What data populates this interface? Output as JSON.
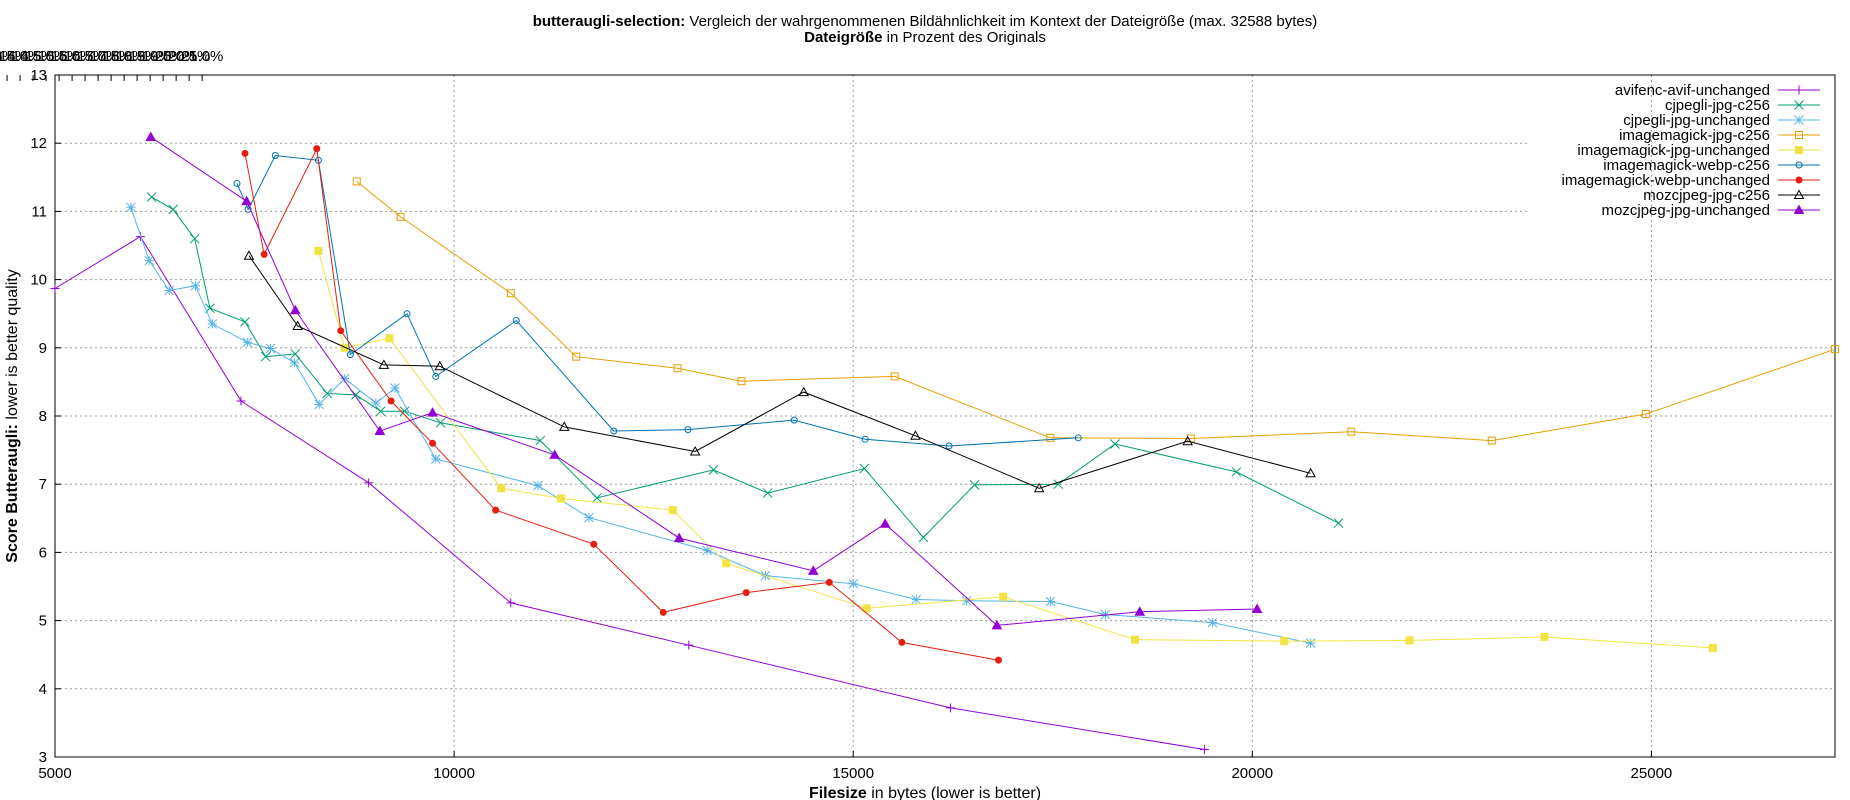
{
  "chart_data": {
    "type": "line",
    "title_bold": "butteraugli-selection:",
    "title_rest": " Vergleich der wahrgenommenen Bildähnlichkeit im Kontext der Dateigröße (max. 32588 bytes)",
    "x2label_bold": "Dateigröße",
    "x2label_rest": " in Prozent des Originals",
    "xlabel_bold": "Filesize",
    "xlabel_rest": " in bytes (lower is better)",
    "ylabel_bold": "Score Butteraugli:",
    "ylabel_rest": " lower is better quality",
    "xlim": [
      5000,
      27300
    ],
    "ylim": [
      3,
      13
    ],
    "x_ticks": [
      5000,
      10000,
      15000,
      20000,
      25000
    ],
    "y_ticks": [
      3,
      4,
      5,
      6,
      7,
      8,
      9,
      10,
      11,
      12,
      13
    ],
    "x2_ticks": [
      "4.0%",
      "4.5%",
      "5.0%",
      "5.5%",
      "6.0%",
      "6.5%",
      "7.0%",
      "7.5%",
      "8.0%",
      "8.5%",
      "9.0%",
      "9.5%",
      "10.0%",
      "10.5%",
      "11.0%",
      "11.5%",
      "12.0%",
      "12.5%",
      "13.0%",
      "13.5%",
      "14.0%",
      "14.5%",
      "15.0%",
      "15.5%",
      "16.0%",
      "16.5%",
      "17.0%",
      "17.5%",
      "18.0%",
      "18.5%",
      "19.0%",
      "19.5%",
      "20.0%",
      "20.5%",
      "21.0%"
    ],
    "x2_max_bytes": 32588,
    "grid": true,
    "legend_position": "top-right",
    "series": [
      {
        "name": "avifenc-avif-unchanged",
        "color": "#9400d3",
        "marker": "plus",
        "points": [
          [
            5000,
            9.87
          ],
          [
            6070,
            10.63
          ],
          [
            7330,
            8.22
          ],
          [
            8930,
            7.02
          ],
          [
            10710,
            5.26
          ],
          [
            12940,
            4.64
          ],
          [
            16220,
            3.72
          ],
          [
            19400,
            3.11
          ]
        ]
      },
      {
        "name": "cjpegli-jpg-c256",
        "color": "#009e73",
        "marker": "cross",
        "points": [
          [
            6210,
            11.21
          ],
          [
            6480,
            11.03
          ],
          [
            6750,
            10.6
          ],
          [
            6940,
            9.58
          ],
          [
            7380,
            9.38
          ],
          [
            7640,
            8.87
          ],
          [
            8010,
            8.91
          ],
          [
            8410,
            8.33
          ],
          [
            8770,
            8.31
          ],
          [
            9080,
            8.07
          ],
          [
            9380,
            8.07
          ],
          [
            9830,
            7.9
          ],
          [
            11080,
            7.64
          ],
          [
            11790,
            6.8
          ],
          [
            13250,
            7.21
          ],
          [
            13930,
            6.87
          ],
          [
            15140,
            7.23
          ],
          [
            15880,
            6.22
          ],
          [
            16520,
            6.99
          ],
          [
            17570,
            7.0
          ],
          [
            18280,
            7.59
          ],
          [
            19800,
            7.18
          ],
          [
            21080,
            6.43
          ]
        ]
      },
      {
        "name": "cjpegli-jpg-unchanged",
        "color": "#56b4e9",
        "marker": "star",
        "points": [
          [
            5950,
            11.06
          ],
          [
            6180,
            10.28
          ],
          [
            6430,
            9.84
          ],
          [
            6760,
            9.91
          ],
          [
            6970,
            9.35
          ],
          [
            7410,
            9.08
          ],
          [
            7700,
            8.99
          ],
          [
            8000,
            8.78
          ],
          [
            8310,
            8.17
          ],
          [
            8630,
            8.55
          ],
          [
            9020,
            8.19
          ],
          [
            9260,
            8.41
          ],
          [
            9770,
            7.37
          ],
          [
            11050,
            6.98
          ],
          [
            11690,
            6.51
          ],
          [
            13170,
            6.03
          ],
          [
            13900,
            5.66
          ],
          [
            15000,
            5.54
          ],
          [
            15790,
            5.31
          ],
          [
            16420,
            5.29
          ],
          [
            17470,
            5.28
          ],
          [
            18160,
            5.09
          ],
          [
            19500,
            4.97
          ],
          [
            20730,
            4.67
          ]
        ]
      },
      {
        "name": "imagemagick-jpg-c256",
        "color": "#e69f00",
        "marker": "square",
        "points": [
          [
            8780,
            11.44
          ],
          [
            9330,
            10.92
          ],
          [
            10710,
            9.8
          ],
          [
            11530,
            8.87
          ],
          [
            12800,
            8.7
          ],
          [
            13600,
            8.51
          ],
          [
            15520,
            8.58
          ],
          [
            17470,
            7.68
          ],
          [
            19230,
            7.67
          ],
          [
            21240,
            7.77
          ],
          [
            23000,
            7.64
          ],
          [
            24930,
            8.03
          ],
          [
            27300,
            8.98
          ]
        ]
      },
      {
        "name": "imagemagick-jpg-unchanged",
        "color": "#f0e442",
        "marker": "filled-square",
        "points": [
          [
            8300,
            10.42
          ],
          [
            8630,
            9.0
          ],
          [
            9190,
            9.14
          ],
          [
            10590,
            6.94
          ],
          [
            11340,
            6.79
          ],
          [
            12740,
            6.62
          ],
          [
            13410,
            5.84
          ],
          [
            15170,
            5.18
          ],
          [
            16880,
            5.35
          ],
          [
            18530,
            4.72
          ],
          [
            20400,
            4.7
          ],
          [
            21970,
            4.71
          ],
          [
            23660,
            4.76
          ],
          [
            25770,
            4.6
          ]
        ]
      },
      {
        "name": "imagemagick-webp-c256",
        "color": "#0072b2",
        "marker": "circle",
        "points": [
          [
            7280,
            11.41
          ],
          [
            7420,
            11.03
          ],
          [
            7760,
            11.82
          ],
          [
            8300,
            11.75
          ],
          [
            8700,
            8.9
          ],
          [
            9410,
            9.5
          ],
          [
            9770,
            8.58
          ],
          [
            10780,
            9.4
          ],
          [
            12000,
            7.78
          ],
          [
            12930,
            7.8
          ],
          [
            14260,
            7.94
          ],
          [
            15150,
            7.66
          ],
          [
            16200,
            7.56
          ],
          [
            17820,
            7.68
          ]
        ]
      },
      {
        "name": "imagemagick-webp-unchanged",
        "color": "#e51e10",
        "marker": "filled-circle",
        "points": [
          [
            7380,
            11.85
          ],
          [
            7620,
            10.37
          ],
          [
            8280,
            11.92
          ],
          [
            8580,
            9.25
          ],
          [
            9210,
            8.22
          ],
          [
            9730,
            7.6
          ],
          [
            10520,
            6.62
          ],
          [
            11750,
            6.12
          ],
          [
            12620,
            5.12
          ],
          [
            13660,
            5.41
          ],
          [
            14700,
            5.56
          ],
          [
            15610,
            4.68
          ],
          [
            16820,
            4.42
          ]
        ]
      },
      {
        "name": "mozcjpeg-jpg-c256",
        "color": "#000000",
        "marker": "triangle",
        "points": [
          [
            7430,
            10.35
          ],
          [
            8040,
            9.32
          ],
          [
            9120,
            8.75
          ],
          [
            9820,
            8.73
          ],
          [
            11380,
            7.84
          ],
          [
            13020,
            7.48
          ],
          [
            14380,
            8.35
          ],
          [
            15780,
            7.71
          ],
          [
            17330,
            6.94
          ],
          [
            19190,
            7.63
          ],
          [
            20730,
            7.16
          ]
        ]
      },
      {
        "name": "mozcjpeg-jpg-unchanged",
        "color": "#9400d3",
        "marker": "filled-triangle",
        "points": [
          [
            6200,
            12.09
          ],
          [
            7400,
            11.15
          ],
          [
            8010,
            9.55
          ],
          [
            9070,
            7.78
          ],
          [
            9730,
            8.05
          ],
          [
            11260,
            7.43
          ],
          [
            12820,
            6.21
          ],
          [
            14500,
            5.73
          ],
          [
            15400,
            6.42
          ],
          [
            16800,
            4.93
          ],
          [
            18590,
            5.13
          ],
          [
            20060,
            5.17
          ]
        ]
      }
    ]
  }
}
